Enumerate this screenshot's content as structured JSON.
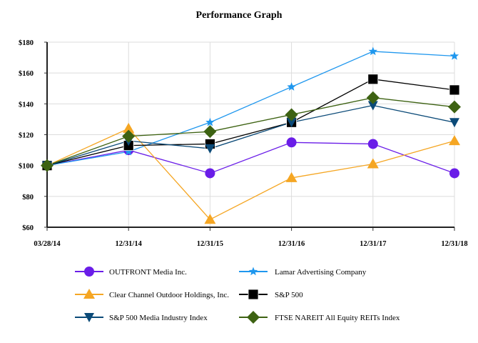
{
  "chart_data": {
    "type": "line",
    "title": "Performance Graph",
    "xlabel": "",
    "ylabel": "",
    "categories": [
      "03/28/14",
      "12/31/14",
      "12/31/15",
      "12/31/16",
      "12/31/17",
      "12/31/18"
    ],
    "ylim": [
      60,
      180
    ],
    "yticks": [
      60,
      80,
      100,
      120,
      140,
      160,
      180
    ],
    "ytick_labels": [
      "$60",
      "$80",
      "$100",
      "$120",
      "$140",
      "$160",
      "$180"
    ],
    "grid": true,
    "legend_position": "bottom",
    "series": [
      {
        "name": "OUTFRONT Media Inc.",
        "color": "#6a1de8",
        "marker": "circle",
        "values": [
          100,
          110,
          95,
          115,
          114,
          95
        ]
      },
      {
        "name": "Lamar Advertising Company",
        "color": "#1f97ee",
        "marker": "star",
        "values": [
          100,
          109,
          128,
          151,
          174,
          171
        ]
      },
      {
        "name": "Clear Channel Outdoor Holdings, Inc.",
        "color": "#f5a623",
        "marker": "triangle-up",
        "values": [
          100,
          124,
          65,
          92,
          101,
          116
        ]
      },
      {
        "name": "S&P 500",
        "color": "#000000",
        "marker": "square",
        "values": [
          100,
          113,
          114,
          128,
          156,
          149
        ]
      },
      {
        "name": "S&P 500 Media Industry Index",
        "color": "#0b4a78",
        "marker": "triangle-down",
        "values": [
          100,
          116,
          111,
          128,
          139,
          128
        ]
      },
      {
        "name": "FTSE NAREIT All Equity REITs Index",
        "color": "#3d6212",
        "marker": "diamond",
        "values": [
          100,
          119,
          122,
          133,
          144,
          138
        ]
      }
    ]
  }
}
